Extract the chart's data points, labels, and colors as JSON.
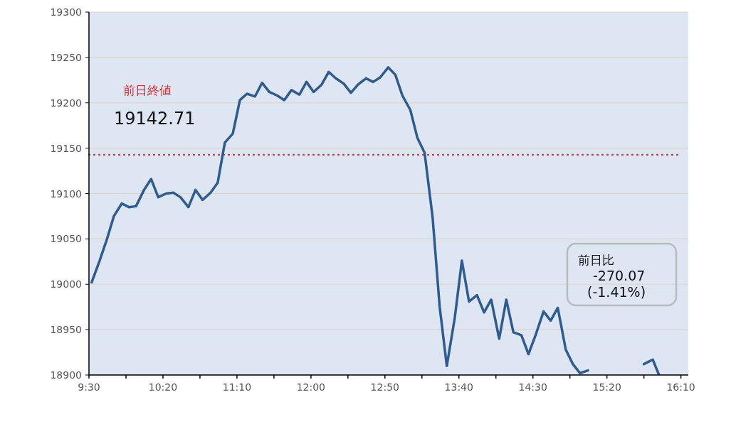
{
  "chart_data": {
    "type": "line",
    "x": [
      9.53,
      9.62,
      9.7,
      9.78,
      9.87,
      9.95,
      10.03,
      10.12,
      10.2,
      10.28,
      10.37,
      10.45,
      10.53,
      10.62,
      10.7,
      10.78,
      10.87,
      10.95,
      11.03,
      11.12,
      11.2,
      11.28,
      11.37,
      11.45,
      11.53,
      11.62,
      11.7,
      11.78,
      11.87,
      11.95,
      12.03,
      12.12,
      12.2,
      12.28,
      12.37,
      12.45,
      12.53,
      12.62,
      12.7,
      12.78,
      12.87,
      12.95,
      13.03,
      13.12,
      13.2,
      13.28,
      13.37,
      13.45,
      13.53,
      13.62,
      13.7,
      13.78,
      13.87,
      13.95,
      14.03,
      14.12,
      14.2,
      14.28,
      14.37,
      14.45,
      14.53,
      14.62,
      14.7,
      14.78,
      14.87,
      14.95,
      15.03,
      15.12,
      15.37,
      15.75,
      15.85,
      15.92
    ],
    "series": [
      {
        "color": "#2f5b8f",
        "values": [
          19002,
          19026,
          19049,
          19075,
          19089,
          19085,
          19086,
          19104,
          19116,
          19096,
          19100,
          19101,
          19096,
          19085,
          19104,
          19093,
          19101,
          19112,
          19156,
          19166,
          19203,
          19210,
          19207,
          19222,
          19212,
          19208,
          19203,
          19214,
          19209,
          19223,
          19212,
          19220,
          19234,
          19227,
          19221,
          19211,
          19220,
          19227,
          19223,
          19228,
          19239,
          19231,
          19208,
          19192,
          19161,
          19145,
          19074,
          18975,
          18910,
          18963,
          19026,
          18981,
          18988,
          18969,
          18983,
          18940,
          18983,
          18947,
          18944,
          18923,
          18944,
          18970,
          18960,
          18974,
          18928,
          18912,
          18902,
          18905,
          null,
          18912,
          18917,
          18900
        ]
      }
    ],
    "xlim": [
      9.5,
      16.25
    ],
    "xticks": [
      {
        "value": 9.5,
        "label": "9:30"
      },
      {
        "value": 9.9167,
        "label": null
      },
      {
        "value": 10.3333,
        "label": "10:20"
      },
      {
        "value": 10.75,
        "label": null
      },
      {
        "value": 11.1667,
        "label": "11:10"
      },
      {
        "value": 11.5833,
        "label": null
      },
      {
        "value": 12,
        "label": "12:00"
      },
      {
        "value": 12.4167,
        "label": null
      },
      {
        "value": 12.8333,
        "label": "12:50"
      },
      {
        "value": 13.25,
        "label": null
      },
      {
        "value": 13.6667,
        "label": "13:40"
      },
      {
        "value": 14.0833,
        "label": null
      },
      {
        "value": 14.5,
        "label": "14:30"
      },
      {
        "value": 14.9167,
        "label": null
      },
      {
        "value": 15.3333,
        "label": "15:20"
      },
      {
        "value": 15.75,
        "label": null
      },
      {
        "value": 16.1667,
        "label": "16:10"
      }
    ],
    "ylim": [
      18900,
      19300
    ],
    "yticks": [
      18900,
      18950,
      19000,
      19050,
      19100,
      19150,
      19200,
      19250,
      19300
    ],
    "grid": "y",
    "ref_lines": [
      {
        "axis": "y",
        "value": 19142.71,
        "label": "前日終値",
        "color": "#d03030",
        "line_style": "dotted"
      }
    ],
    "annotations": [
      "19142.71",
      "前日比\n-270.07\n(-1.41%)"
    ]
  }
}
